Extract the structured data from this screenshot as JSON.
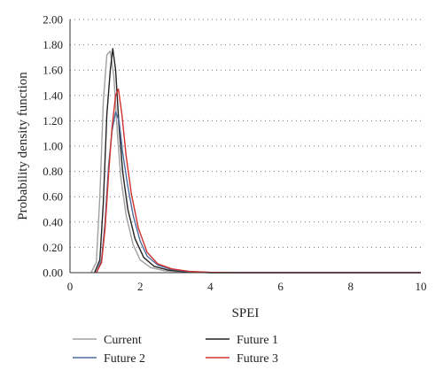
{
  "chart_data": {
    "type": "line",
    "xlabel": "SPEI",
    "ylabel": "Probability density function",
    "xlim": [
      0,
      10
    ],
    "ylim": [
      0,
      2.0
    ],
    "x_ticks": [
      "0",
      "2",
      "4",
      "6",
      "8",
      "10"
    ],
    "y_ticks": [
      "0.00",
      "0.20",
      "0.40",
      "0.60",
      "0.80",
      "1.00",
      "1.20",
      "1.40",
      "1.60",
      "1.80",
      "2.00"
    ],
    "grid": "horizontal-dotted",
    "legend_position": "bottom",
    "series": [
      {
        "name": "Current",
        "color": "#a0a0a0",
        "x": [
          0.6,
          0.75,
          0.85,
          0.95,
          1.05,
          1.15,
          1.25,
          1.35,
          1.45,
          1.6,
          1.8,
          2.0,
          2.3,
          2.7,
          3.2,
          4.0,
          5.0,
          10.0
        ],
        "y": [
          0.0,
          0.08,
          0.6,
          1.35,
          1.72,
          1.75,
          1.55,
          1.1,
          0.75,
          0.45,
          0.22,
          0.1,
          0.04,
          0.015,
          0.005,
          0.0,
          0.0,
          0.0
        ]
      },
      {
        "name": "Future 1",
        "color": "#222222",
        "x": [
          0.7,
          0.85,
          0.95,
          1.05,
          1.15,
          1.22,
          1.3,
          1.4,
          1.5,
          1.65,
          1.85,
          2.1,
          2.4,
          2.8,
          3.3,
          4.0,
          5.0,
          10.0
        ],
        "y": [
          0.0,
          0.1,
          0.55,
          1.25,
          1.6,
          1.77,
          1.6,
          1.15,
          0.8,
          0.5,
          0.27,
          0.12,
          0.05,
          0.02,
          0.006,
          0.0,
          0.0,
          0.0
        ]
      },
      {
        "name": "Future 2",
        "color": "#4a6da0",
        "x": [
          0.75,
          0.9,
          1.0,
          1.1,
          1.2,
          1.3,
          1.4,
          1.5,
          1.65,
          1.8,
          2.0,
          2.2,
          2.5,
          2.9,
          3.4,
          4.0,
          5.0,
          10.0
        ],
        "y": [
          0.0,
          0.1,
          0.4,
          0.85,
          1.12,
          1.27,
          1.2,
          0.95,
          0.68,
          0.45,
          0.25,
          0.13,
          0.06,
          0.025,
          0.008,
          0.002,
          0.0,
          0.0
        ]
      },
      {
        "name": "Future 3",
        "color": "#d0312d",
        "x": [
          0.75,
          0.9,
          1.0,
          1.1,
          1.2,
          1.3,
          1.38,
          1.48,
          1.6,
          1.75,
          1.95,
          2.2,
          2.5,
          2.9,
          3.4,
          4.0,
          5.0,
          10.0
        ],
        "y": [
          0.0,
          0.08,
          0.35,
          0.78,
          1.15,
          1.4,
          1.45,
          1.25,
          0.92,
          0.62,
          0.35,
          0.16,
          0.07,
          0.03,
          0.01,
          0.003,
          0.0,
          0.0
        ]
      }
    ]
  }
}
